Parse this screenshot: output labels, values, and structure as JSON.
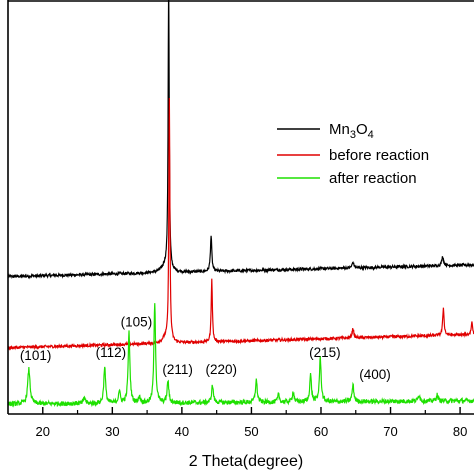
{
  "chart_data": {
    "type": "line",
    "title": "",
    "xlabel": "2 Theta(degree)",
    "ylabel": "",
    "xlim": [
      15,
      82
    ],
    "ylim": [
      0,
      100
    ],
    "x_ticks": [
      20,
      30,
      40,
      50,
      60,
      70,
      80
    ],
    "x_tick_labels": [
      "20",
      "30",
      "40",
      "50",
      "60",
      "70",
      "80"
    ],
    "y_ticks_shown": false,
    "grid": false,
    "legend_position": "center-right",
    "series": [
      {
        "name_parts": [
          {
            "text": "Mn",
            "sub": false
          },
          {
            "text": "3",
            "sub": true
          },
          {
            "text": "O",
            "sub": false
          },
          {
            "text": "4",
            "sub": true
          }
        ],
        "color": "#000000",
        "baseline": 33.2,
        "drift": 0.042,
        "noise": 0.35,
        "peaks": [
          {
            "x": 37.6,
            "h": 1.5,
            "w": 0.6
          },
          {
            "x": 38.1,
            "h": 71,
            "w": 0.09
          },
          {
            "x": 44.2,
            "h": 8.6,
            "w": 0.12
          },
          {
            "x": 64.6,
            "h": 1.4,
            "w": 0.15
          },
          {
            "x": 77.5,
            "h": 2.3,
            "w": 0.15
          }
        ]
      },
      {
        "name": "before reaction",
        "color": "#e00000",
        "baseline": 16.0,
        "drift": 0.048,
        "noise": 0.35,
        "peaks": [
          {
            "x": 37.6,
            "h": 1.2,
            "w": 0.5
          },
          {
            "x": 38.2,
            "h": 59,
            "w": 0.09
          },
          {
            "x": 44.3,
            "h": 15.5,
            "w": 0.1
          },
          {
            "x": 64.6,
            "h": 2.3,
            "w": 0.14
          },
          {
            "x": 77.6,
            "h": 6.6,
            "w": 0.12
          },
          {
            "x": 81.7,
            "h": 3.0,
            "w": 0.12
          }
        ]
      },
      {
        "name": "after reaction",
        "color": "#1ee000",
        "baseline": 2.4,
        "drift": 0.012,
        "noise": 0.55,
        "peaks": [
          {
            "x": 18.0,
            "h": 8.4,
            "w": 0.2
          },
          {
            "x": 26.0,
            "h": 1.5,
            "w": 0.15
          },
          {
            "x": 28.9,
            "h": 9.0,
            "w": 0.15
          },
          {
            "x": 31.0,
            "h": 3.0,
            "w": 0.15
          },
          {
            "x": 32.4,
            "h": 17.0,
            "w": 0.15
          },
          {
            "x": 33.9,
            "h": 1.6,
            "w": 0.15
          },
          {
            "x": 36.1,
            "h": 24.5,
            "w": 0.14
          },
          {
            "x": 38.0,
            "h": 5.4,
            "w": 0.14
          },
          {
            "x": 44.4,
            "h": 4.2,
            "w": 0.15
          },
          {
            "x": 50.7,
            "h": 5.4,
            "w": 0.15
          },
          {
            "x": 53.9,
            "h": 1.8,
            "w": 0.15
          },
          {
            "x": 56.0,
            "h": 2.5,
            "w": 0.15
          },
          {
            "x": 58.5,
            "h": 6.5,
            "w": 0.15
          },
          {
            "x": 59.9,
            "h": 10.6,
            "w": 0.15
          },
          {
            "x": 64.6,
            "h": 4.0,
            "w": 0.15
          },
          {
            "x": 74.1,
            "h": 1.6,
            "w": 0.15
          },
          {
            "x": 76.7,
            "h": 1.5,
            "w": 0.15
          }
        ]
      }
    ],
    "annotations": [
      {
        "text": "(101)",
        "x": 16.7,
        "y": 13.1
      },
      {
        "text": "(112)",
        "x": 27.6,
        "y": 13.8
      },
      {
        "text": "(105)",
        "x": 31.2,
        "y": 21.1
      },
      {
        "text": "(211)",
        "x": 37.2,
        "y": 9.7
      },
      {
        "text": "(220)",
        "x": 43.4,
        "y": 9.7
      },
      {
        "text": "(215)",
        "x": 58.3,
        "y": 13.8
      },
      {
        "text": "(400)",
        "x": 65.5,
        "y": 8.5
      }
    ]
  }
}
